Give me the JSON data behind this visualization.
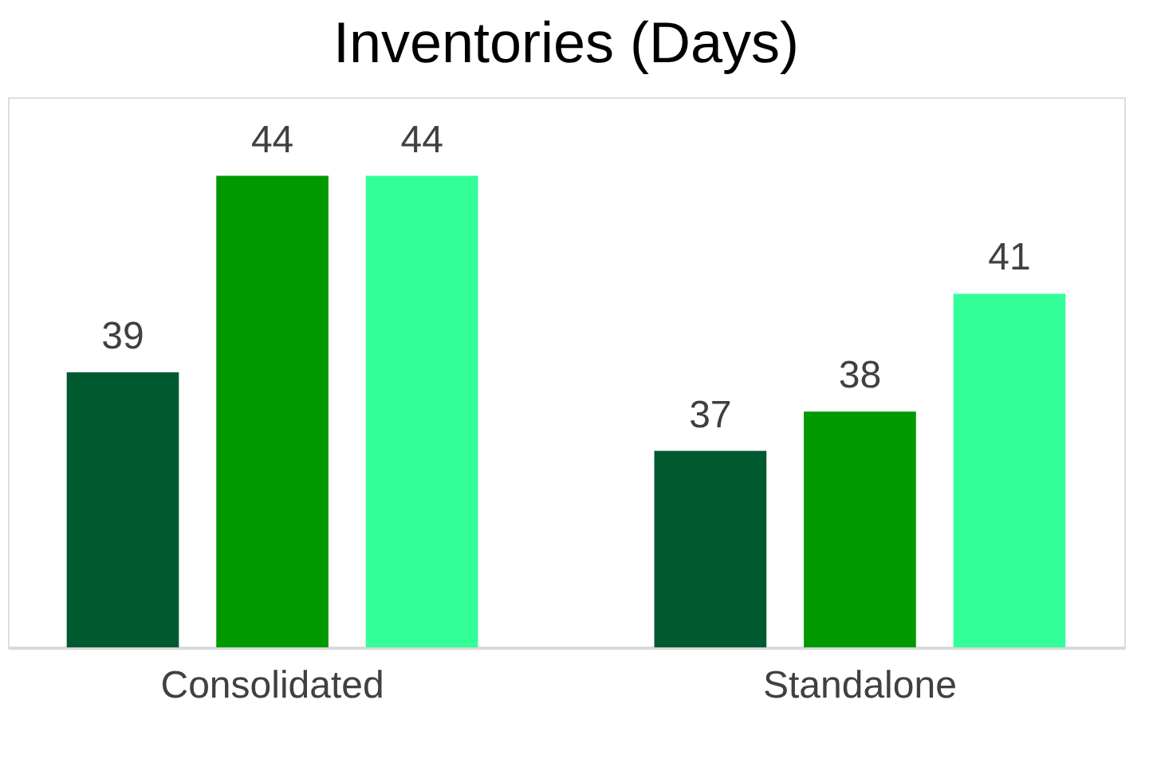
{
  "chart_data": {
    "type": "bar",
    "title": "Inventories (Days)",
    "categories": [
      "Consolidated",
      "Standalone"
    ],
    "series": [
      {
        "color": "#005a30",
        "values": [
          39,
          37
        ]
      },
      {
        "color": "#009900",
        "values": [
          44,
          38
        ]
      },
      {
        "color": "#33ff99",
        "values": [
          44,
          41
        ]
      }
    ],
    "ylim": [
      32,
      46
    ],
    "data_labels": true,
    "tick_labels": "x",
    "grid": false,
    "legend": false
  }
}
